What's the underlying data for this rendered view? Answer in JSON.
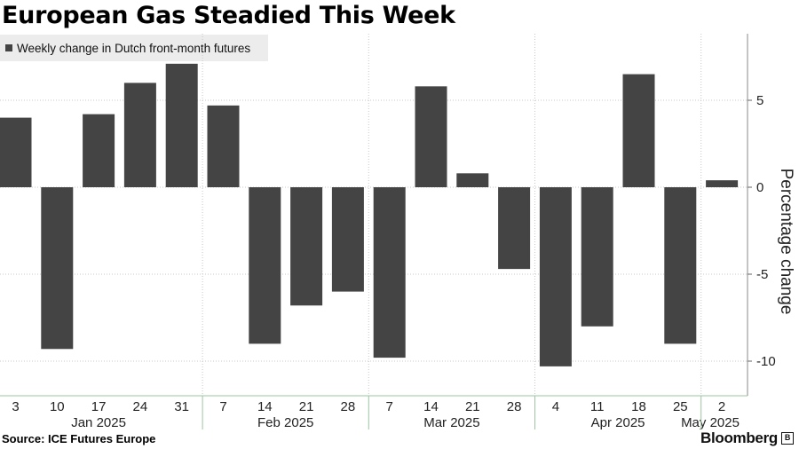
{
  "title": "European Gas Steadied This Week",
  "legend": {
    "label": "Weekly change in Dutch front-month futures"
  },
  "source": "Source: ICE Futures Europe",
  "brand": "Bloomberg",
  "colors": {
    "bar": "#444444",
    "grid": "#c8c8c8",
    "axis": "#9cc5a1",
    "legend_bg": "#ececec"
  },
  "chart_data": {
    "type": "bar",
    "title": "European Gas Steadied This Week",
    "ylabel": "Percentage change",
    "xlabel": "",
    "ylim": [
      -12,
      9
    ],
    "yticks": [
      5,
      0,
      -5,
      -10
    ],
    "grid": true,
    "legend_position": "top-left",
    "categories": [
      "3",
      "10",
      "17",
      "24",
      "31",
      "7",
      "14",
      "21",
      "28",
      "7",
      "14",
      "21",
      "28",
      "4",
      "11",
      "18",
      "25",
      "2"
    ],
    "values": [
      4.0,
      -9.3,
      4.2,
      6.0,
      7.1,
      4.7,
      -9.0,
      -6.8,
      -6.0,
      -9.8,
      5.8,
      0.8,
      -4.7,
      -10.3,
      -8.0,
      6.5,
      -9.0,
      0.4
    ],
    "series": [
      {
        "name": "Weekly change in Dutch front-month futures",
        "values": [
          4.0,
          -9.3,
          4.2,
          6.0,
          7.1,
          4.7,
          -9.0,
          -6.8,
          -6.0,
          -9.8,
          5.8,
          0.8,
          -4.7,
          -10.3,
          -8.0,
          6.5,
          -9.0,
          0.4
        ]
      }
    ],
    "month_labels": [
      {
        "label": "Jan 2025",
        "first": 0,
        "last": 4
      },
      {
        "label": "Feb 2025",
        "first": 5,
        "last": 8
      },
      {
        "label": "Mar 2025",
        "first": 9,
        "last": 12
      },
      {
        "label": "Apr 2025",
        "first": 13,
        "last": 16
      },
      {
        "label": "May 2025",
        "first": 17,
        "last": 17
      }
    ]
  }
}
